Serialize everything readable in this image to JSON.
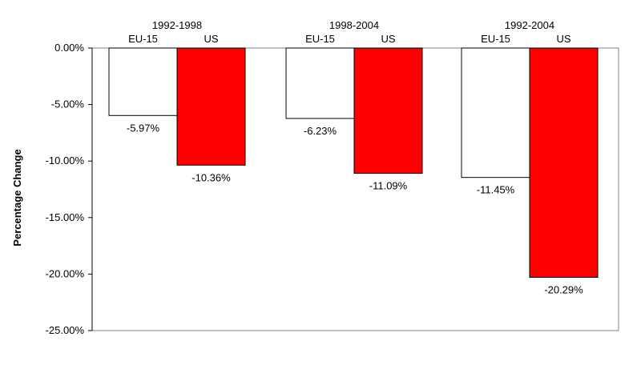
{
  "chart_data": {
    "type": "bar",
    "title": "",
    "xlabel": "",
    "ylabel": "Percentage Change",
    "ylim": [
      -25,
      0
    ],
    "y_ticks": [
      0,
      -5,
      -10,
      -15,
      -20,
      -25
    ],
    "y_tick_labels": [
      "0.00%",
      "-5.00%",
      "-10.00%",
      "-15.00%",
      "-20.00%",
      "-25.00%"
    ],
    "grid": false,
    "legend": "none",
    "groups": [
      {
        "label": "1992-1998",
        "bars": [
          {
            "series": "EU-15",
            "value": -5.97,
            "label": "-5.97%"
          },
          {
            "series": "US",
            "value": -10.36,
            "label": "-10.36%"
          }
        ]
      },
      {
        "label": "1998-2004",
        "bars": [
          {
            "series": "EU-15",
            "value": -6.23,
            "label": "-6.23%"
          },
          {
            "series": "US",
            "value": -11.09,
            "label": "-11.09%"
          }
        ]
      },
      {
        "label": "1992-2004",
        "bars": [
          {
            "series": "EU-15",
            "value": -11.45,
            "label": "-11.45%"
          },
          {
            "series": "US",
            "value": -20.29,
            "label": "-20.29%"
          }
        ]
      }
    ],
    "series_colors": {
      "EU-15": "#ffffff",
      "US": "#ff0000"
    },
    "bar_stroke": "#000000",
    "plot_border_color": "#808080"
  }
}
